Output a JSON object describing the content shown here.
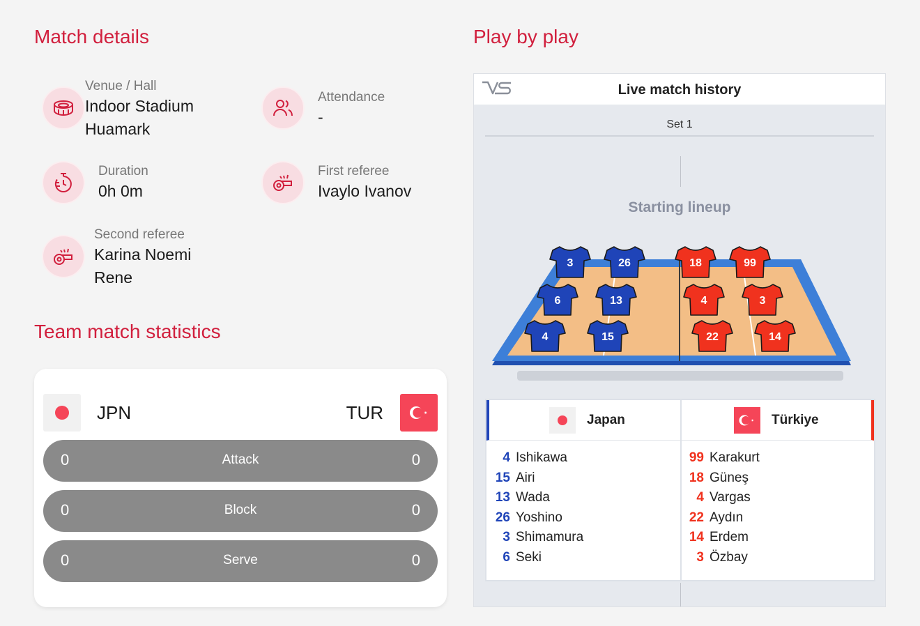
{
  "match_details": {
    "title": "Match details",
    "venue": {
      "label": "Venue / Hall",
      "value_line1": "Indoor Stadium",
      "value_line2": "Huamark",
      "icon": "stadium-icon"
    },
    "attendance": {
      "label": "Attendance",
      "value": "-",
      "icon": "people-icon"
    },
    "duration": {
      "label": "Duration",
      "value": "0h 0m",
      "icon": "stopwatch-icon"
    },
    "first_referee": {
      "label": "First referee",
      "value": "Ivaylo Ivanov",
      "icon": "whistle-icon"
    },
    "second_referee": {
      "label": "Second referee",
      "value_line1": "Karina Noemi",
      "value_line2": "Rene",
      "icon": "whistle-icon"
    }
  },
  "team_stats": {
    "title": "Team match statistics",
    "home_code": "JPN",
    "away_code": "TUR",
    "rows": [
      {
        "label": "Attack",
        "home": "0",
        "away": "0"
      },
      {
        "label": "Block",
        "home": "0",
        "away": "0"
      },
      {
        "label": "Serve",
        "home": "0",
        "away": "0"
      }
    ]
  },
  "play_by_play": {
    "title": "Play by play",
    "header_title": "Live match history",
    "set_label": "Set 1",
    "lineup_title": "Starting lineup",
    "home_team": "Japan",
    "away_team": "Türkiye",
    "home_color": "#1f44b8",
    "away_color": "#f0321e",
    "court_home_numbers": [
      "3",
      "26",
      "6",
      "13",
      "4",
      "15"
    ],
    "court_away_numbers": [
      "18",
      "99",
      "4",
      "3",
      "22",
      "14"
    ],
    "home_players": [
      {
        "num": "4",
        "name": "Ishikawa"
      },
      {
        "num": "15",
        "name": "Airi"
      },
      {
        "num": "13",
        "name": "Wada"
      },
      {
        "num": "26",
        "name": "Yoshino"
      },
      {
        "num": "3",
        "name": "Shimamura"
      },
      {
        "num": "6",
        "name": "Seki"
      }
    ],
    "away_players": [
      {
        "num": "99",
        "name": "Karakurt"
      },
      {
        "num": "18",
        "name": "Güneş"
      },
      {
        "num": "4",
        "name": "Vargas"
      },
      {
        "num": "22",
        "name": "Aydın"
      },
      {
        "num": "14",
        "name": "Erdem"
      },
      {
        "num": "3",
        "name": "Özbay"
      }
    ]
  }
}
